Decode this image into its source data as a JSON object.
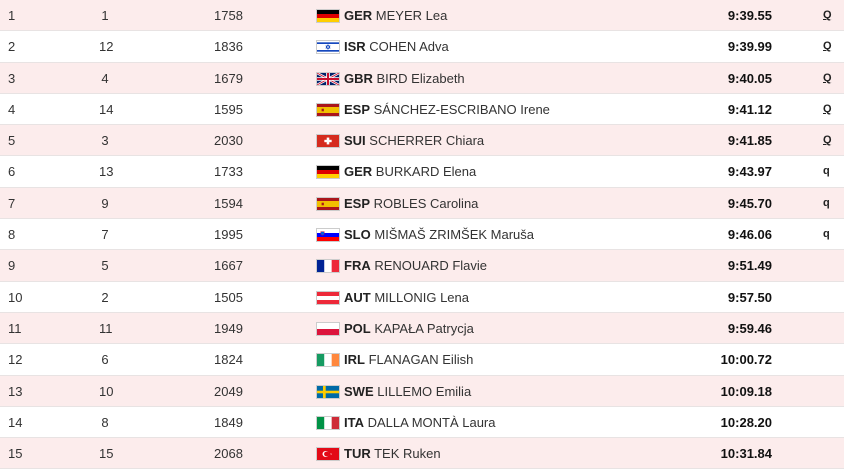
{
  "rows": [
    {
      "rank": "1",
      "lane": "1",
      "bib": "1758",
      "flag": "GER",
      "noc": "GER",
      "name": "MEYER Lea",
      "time": "9:39.55",
      "q": "Q"
    },
    {
      "rank": "2",
      "lane": "12",
      "bib": "1836",
      "flag": "ISR",
      "noc": "ISR",
      "name": "COHEN Adva",
      "time": "9:39.99",
      "q": "Q"
    },
    {
      "rank": "3",
      "lane": "4",
      "bib": "1679",
      "flag": "GBR",
      "noc": "GBR",
      "name": "BIRD Elizabeth",
      "time": "9:40.05",
      "q": "Q"
    },
    {
      "rank": "4",
      "lane": "14",
      "bib": "1595",
      "flag": "ESP",
      "noc": "ESP",
      "name": "SÁNCHEZ-ESCRIBANO Irene",
      "time": "9:41.12",
      "q": "Q"
    },
    {
      "rank": "5",
      "lane": "3",
      "bib": "2030",
      "flag": "SUI",
      "noc": "SUI",
      "name": "SCHERRER Chiara",
      "time": "9:41.85",
      "q": "Q"
    },
    {
      "rank": "6",
      "lane": "13",
      "bib": "1733",
      "flag": "GER",
      "noc": "GER",
      "name": "BURKARD Elena",
      "time": "9:43.97",
      "q": "q"
    },
    {
      "rank": "7",
      "lane": "9",
      "bib": "1594",
      "flag": "ESP",
      "noc": "ESP",
      "name": "ROBLES Carolina",
      "time": "9:45.70",
      "q": "q"
    },
    {
      "rank": "8",
      "lane": "7",
      "bib": "1995",
      "flag": "SLO",
      "noc": "SLO",
      "name": "MIŠMAŠ ZRIMŠEK Maruša",
      "time": "9:46.06",
      "q": "q"
    },
    {
      "rank": "9",
      "lane": "5",
      "bib": "1667",
      "flag": "FRA",
      "noc": "FRA",
      "name": "RENOUARD Flavie",
      "time": "9:51.49",
      "q": ""
    },
    {
      "rank": "10",
      "lane": "2",
      "bib": "1505",
      "flag": "AUT",
      "noc": "AUT",
      "name": "MILLONIG Lena",
      "time": "9:57.50",
      "q": ""
    },
    {
      "rank": "11",
      "lane": "11",
      "bib": "1949",
      "flag": "POL",
      "noc": "POL",
      "name": "KAPAŁA Patrycja",
      "time": "9:59.46",
      "q": ""
    },
    {
      "rank": "12",
      "lane": "6",
      "bib": "1824",
      "flag": "IRL",
      "noc": "IRL",
      "name": "FLANAGAN Eilish",
      "time": "10:00.72",
      "q": ""
    },
    {
      "rank": "13",
      "lane": "10",
      "bib": "2049",
      "flag": "SWE",
      "noc": "SWE",
      "name": "LILLEMO Emilia",
      "time": "10:09.18",
      "q": ""
    },
    {
      "rank": "14",
      "lane": "8",
      "bib": "1849",
      "flag": "ITA",
      "noc": "ITA",
      "name": "DALLA MONTÀ Laura",
      "time": "10:28.20",
      "q": ""
    },
    {
      "rank": "15",
      "lane": "15",
      "bib": "2068",
      "flag": "TUR",
      "noc": "TUR",
      "name": "TEK Ruken",
      "time": "10:31.84",
      "q": ""
    }
  ],
  "colors": {
    "row_odd": "#fcecec",
    "row_even": "#ffffff",
    "divider": "#e8e3e3"
  }
}
